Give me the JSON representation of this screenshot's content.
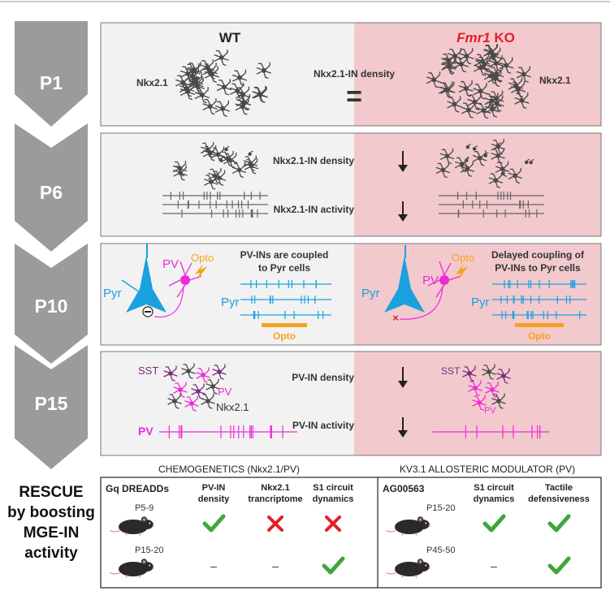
{
  "stages": [
    "P1",
    "P6",
    "P10",
    "P15"
  ],
  "columns": {
    "wt": "WT",
    "ko_gene": "Fmr1",
    "ko_suffix": " KO"
  },
  "p1": {
    "wt_label": "Nkx2.1",
    "ko_label": "Nkx2.1",
    "center": "Nkx2.1-IN density",
    "equals": "="
  },
  "p6": {
    "density": "Nkx2.1-IN density",
    "activity": "Nkx2.1-IN activity"
  },
  "p10": {
    "wt_title_1": "PV-INs are coupled",
    "wt_title_2": "to Pyr cells",
    "ko_title_1": "Delayed coupling of",
    "ko_title_2": "PV-INs to Pyr cells",
    "pyr": "Pyr",
    "pv": "PV",
    "opto": "Opto",
    "minus": "−",
    "cross": "×"
  },
  "p15": {
    "sst": "SST",
    "pv": "PV",
    "nkx": "Nkx2.1",
    "density": "PV-IN density",
    "activity": "PV-IN activity",
    "pv_trace": "PV"
  },
  "rescue": {
    "title_1": "RESCUE",
    "title_2": "by boosting",
    "title_3": "MGE-IN",
    "title_4": "activity",
    "chemo_header": "CHEMOGENETICS (Nkx2.1/PV)",
    "kv_header": "KV3.1 ALLOSTERIC MODULATOR (PV)",
    "chemo_drug": "Gq DREADDs",
    "chemo_cols": [
      "PV-IN|density",
      "Nkx2.1|trancriptome",
      "S1 circuit|dynamics"
    ],
    "chemo_rows": [
      {
        "age": "P5-9",
        "marks": [
          "check",
          "cross",
          "cross"
        ]
      },
      {
        "age": "P15-20",
        "marks": [
          "dash",
          "dash",
          "check"
        ]
      }
    ],
    "kv_drug": "AG00563",
    "kv_cols": [
      "S1 circuit|dynamics",
      "Tactile|defensiveness"
    ],
    "kv_rows": [
      {
        "age": "P15-20",
        "marks": [
          "check",
          "check"
        ]
      },
      {
        "age": "P45-50",
        "marks": [
          "dash",
          "check"
        ]
      }
    ],
    "dash": "–"
  },
  "colors": {
    "pink": "#f2c9cd",
    "gray_panel": "#f2f2f2",
    "cyan": "#1ba1dd",
    "magenta": "#ee2bd9",
    "purple": "#7b2d7f",
    "orange": "#f7a21c",
    "green": "#3fa63a",
    "red": "#e21f26"
  }
}
